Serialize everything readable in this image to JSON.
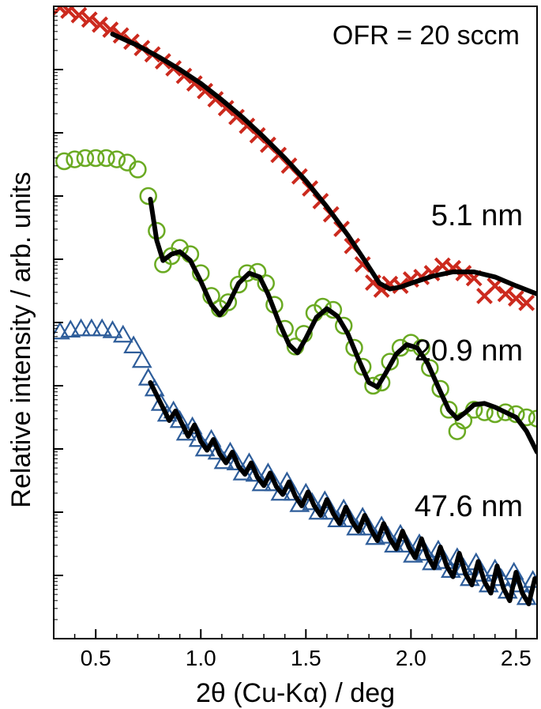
{
  "chart_data": {
    "type": "scatter",
    "title": "",
    "xlabel": "2θ (Cu-Kα) / deg",
    "ylabel": "Relative intensity / arb. units",
    "xlim": [
      0.3,
      2.6
    ],
    "xticks": [
      0.5,
      1.0,
      1.5,
      2.0,
      2.5
    ],
    "xtick_labels": [
      "0.5",
      "1.0",
      "1.5",
      "2.0",
      "2.5"
    ],
    "ylim": [
      0,
      10
    ],
    "y_scale": "log",
    "ytick_labels_shown": false,
    "grid": false,
    "legend": "none",
    "annotations": [
      {
        "text": "OFR = 20 sccm",
        "x": 2.59,
        "y": 9.6
      },
      {
        "text": "5.1 nm",
        "x": 2.59,
        "y": 6.6
      },
      {
        "text": "20.9 nm",
        "x": 2.59,
        "y": 4.8
      },
      {
        "text": "47.6 nm",
        "x": 2.59,
        "y": 2.1
      }
    ],
    "series": [
      {
        "marker": "x",
        "color": "#cc2a1e",
        "thickness_label": "5.1 nm",
        "points": [
          [
            0.33,
            9.98
          ],
          [
            0.37,
            9.93
          ],
          [
            0.42,
            9.86
          ],
          [
            0.47,
            9.79
          ],
          [
            0.52,
            9.71
          ],
          [
            0.57,
            9.63
          ],
          [
            0.62,
            9.54
          ],
          [
            0.67,
            9.44
          ],
          [
            0.72,
            9.34
          ],
          [
            0.77,
            9.24
          ],
          [
            0.82,
            9.13
          ],
          [
            0.87,
            9.02
          ],
          [
            0.92,
            8.9
          ],
          [
            0.97,
            8.78
          ],
          [
            1.02,
            8.66
          ],
          [
            1.07,
            8.53
          ],
          [
            1.12,
            8.39
          ],
          [
            1.17,
            8.25
          ],
          [
            1.22,
            8.11
          ],
          [
            1.27,
            7.96
          ],
          [
            1.32,
            7.81
          ],
          [
            1.37,
            7.65
          ],
          [
            1.42,
            7.48
          ],
          [
            1.47,
            7.31
          ],
          [
            1.52,
            7.12
          ],
          [
            1.57,
            6.92
          ],
          [
            1.62,
            6.71
          ],
          [
            1.67,
            6.48
          ],
          [
            1.72,
            6.21
          ],
          [
            1.77,
            5.92
          ],
          [
            1.82,
            5.63
          ],
          [
            1.86,
            5.52
          ],
          [
            1.9,
            5.61
          ],
          [
            1.95,
            5.58
          ],
          [
            2.0,
            5.68
          ],
          [
            2.05,
            5.72
          ],
          [
            2.1,
            5.78
          ],
          [
            2.15,
            5.9
          ],
          [
            2.2,
            5.86
          ],
          [
            2.25,
            5.78
          ],
          [
            2.3,
            5.7
          ],
          [
            2.35,
            5.42
          ],
          [
            2.4,
            5.58
          ],
          [
            2.45,
            5.45
          ],
          [
            2.5,
            5.38
          ],
          [
            2.55,
            5.31
          ]
        ],
        "fit": [
          [
            0.58,
            9.56
          ],
          [
            0.7,
            9.38
          ],
          [
            0.8,
            9.2
          ],
          [
            0.9,
            9.0
          ],
          [
            1.0,
            8.78
          ],
          [
            1.1,
            8.52
          ],
          [
            1.2,
            8.24
          ],
          [
            1.3,
            7.93
          ],
          [
            1.4,
            7.6
          ],
          [
            1.5,
            7.24
          ],
          [
            1.6,
            6.83
          ],
          [
            1.7,
            6.38
          ],
          [
            1.78,
            5.98
          ],
          [
            1.85,
            5.62
          ],
          [
            1.9,
            5.53
          ],
          [
            1.95,
            5.56
          ],
          [
            2.0,
            5.62
          ],
          [
            2.1,
            5.73
          ],
          [
            2.2,
            5.8
          ],
          [
            2.3,
            5.8
          ],
          [
            2.4,
            5.72
          ],
          [
            2.5,
            5.58
          ],
          [
            2.6,
            5.45
          ]
        ]
      },
      {
        "marker": "o",
        "color": "#6aaa22",
        "thickness_label": "20.9 nm",
        "points": [
          [
            0.35,
            7.55
          ],
          [
            0.4,
            7.58
          ],
          [
            0.45,
            7.6
          ],
          [
            0.5,
            7.6
          ],
          [
            0.55,
            7.6
          ],
          [
            0.6,
            7.58
          ],
          [
            0.65,
            7.53
          ],
          [
            0.7,
            7.42
          ],
          [
            0.75,
            7.0
          ],
          [
            0.79,
            6.45
          ],
          [
            0.82,
            5.92
          ],
          [
            0.86,
            6.05
          ],
          [
            0.9,
            6.18
          ],
          [
            0.95,
            6.08
          ],
          [
            1.0,
            5.78
          ],
          [
            1.05,
            5.42
          ],
          [
            1.09,
            5.22
          ],
          [
            1.13,
            5.32
          ],
          [
            1.18,
            5.6
          ],
          [
            1.22,
            5.78
          ],
          [
            1.27,
            5.8
          ],
          [
            1.31,
            5.62
          ],
          [
            1.35,
            5.28
          ],
          [
            1.4,
            4.9
          ],
          [
            1.45,
            4.62
          ],
          [
            1.49,
            4.82
          ],
          [
            1.54,
            5.15
          ],
          [
            1.58,
            5.25
          ],
          [
            1.63,
            5.2
          ],
          [
            1.68,
            4.95
          ],
          [
            1.73,
            4.6
          ],
          [
            1.77,
            4.3
          ],
          [
            1.82,
            4.0
          ],
          [
            1.86,
            4.05
          ],
          [
            1.9,
            4.38
          ],
          [
            1.95,
            4.6
          ],
          [
            2.0,
            4.68
          ],
          [
            2.05,
            4.6
          ],
          [
            2.09,
            4.28
          ],
          [
            2.14,
            3.95
          ],
          [
            2.18,
            3.62
          ],
          [
            2.22,
            3.28
          ],
          [
            2.25,
            3.45
          ],
          [
            2.3,
            3.62
          ],
          [
            2.35,
            3.58
          ],
          [
            2.4,
            3.55
          ],
          [
            2.45,
            3.58
          ],
          [
            2.5,
            3.55
          ],
          [
            2.55,
            3.5
          ],
          [
            2.6,
            3.48
          ]
        ],
        "fit": [
          [
            0.76,
            6.95
          ],
          [
            0.79,
            6.3
          ],
          [
            0.82,
            5.98
          ],
          [
            0.86,
            6.08
          ],
          [
            0.9,
            6.12
          ],
          [
            0.95,
            5.98
          ],
          [
            1.0,
            5.65
          ],
          [
            1.05,
            5.28
          ],
          [
            1.09,
            5.12
          ],
          [
            1.13,
            5.28
          ],
          [
            1.18,
            5.62
          ],
          [
            1.23,
            5.78
          ],
          [
            1.28,
            5.72
          ],
          [
            1.32,
            5.45
          ],
          [
            1.37,
            5.02
          ],
          [
            1.42,
            4.65
          ],
          [
            1.46,
            4.52
          ],
          [
            1.5,
            4.75
          ],
          [
            1.55,
            5.08
          ],
          [
            1.6,
            5.22
          ],
          [
            1.65,
            5.1
          ],
          [
            1.7,
            4.82
          ],
          [
            1.75,
            4.42
          ],
          [
            1.8,
            4.05
          ],
          [
            1.84,
            3.98
          ],
          [
            1.88,
            4.2
          ],
          [
            1.93,
            4.5
          ],
          [
            1.98,
            4.65
          ],
          [
            2.03,
            4.6
          ],
          [
            2.08,
            4.35
          ],
          [
            2.13,
            3.98
          ],
          [
            2.18,
            3.62
          ],
          [
            2.22,
            3.48
          ],
          [
            2.26,
            3.58
          ],
          [
            2.3,
            3.7
          ],
          [
            2.35,
            3.72
          ],
          [
            2.4,
            3.66
          ],
          [
            2.45,
            3.58
          ],
          [
            2.5,
            3.5
          ],
          [
            2.55,
            3.28
          ],
          [
            2.6,
            2.95
          ]
        ]
      },
      {
        "marker": "triangle",
        "color": "#2e5d9a",
        "thickness_label": "47.6 nm",
        "points": [
          [
            0.33,
            4.85
          ],
          [
            0.38,
            4.88
          ],
          [
            0.43,
            4.9
          ],
          [
            0.48,
            4.9
          ],
          [
            0.53,
            4.9
          ],
          [
            0.58,
            4.87
          ],
          [
            0.63,
            4.8
          ],
          [
            0.68,
            4.63
          ],
          [
            0.72,
            4.4
          ],
          [
            0.75,
            4.12
          ],
          [
            0.78,
            3.95
          ],
          [
            0.81,
            3.72
          ],
          [
            0.84,
            3.55
          ],
          [
            0.87,
            3.6
          ],
          [
            0.9,
            3.45
          ],
          [
            0.93,
            3.25
          ],
          [
            0.96,
            3.35
          ],
          [
            0.99,
            3.15
          ],
          [
            1.02,
            3.0
          ],
          [
            1.05,
            3.15
          ],
          [
            1.08,
            2.95
          ],
          [
            1.11,
            2.8
          ],
          [
            1.14,
            2.95
          ],
          [
            1.17,
            2.78
          ],
          [
            1.2,
            2.62
          ],
          [
            1.23,
            2.78
          ],
          [
            1.26,
            2.6
          ],
          [
            1.29,
            2.45
          ],
          [
            1.32,
            2.62
          ],
          [
            1.35,
            2.45
          ],
          [
            1.38,
            2.3
          ],
          [
            1.41,
            2.48
          ],
          [
            1.44,
            2.3
          ],
          [
            1.47,
            2.12
          ],
          [
            1.5,
            2.3
          ],
          [
            1.53,
            2.15
          ],
          [
            1.56,
            2.0
          ],
          [
            1.59,
            2.18
          ],
          [
            1.62,
            2.0
          ],
          [
            1.65,
            1.88
          ],
          [
            1.68,
            2.05
          ],
          [
            1.71,
            1.88
          ],
          [
            1.74,
            1.75
          ],
          [
            1.77,
            1.92
          ],
          [
            1.8,
            1.75
          ],
          [
            1.83,
            1.6
          ],
          [
            1.86,
            1.78
          ],
          [
            1.89,
            1.62
          ],
          [
            1.92,
            1.48
          ],
          [
            1.95,
            1.65
          ],
          [
            1.98,
            1.48
          ],
          [
            2.01,
            1.32
          ],
          [
            2.04,
            1.5
          ],
          [
            2.07,
            1.35
          ],
          [
            2.1,
            1.2
          ],
          [
            2.13,
            1.4
          ],
          [
            2.16,
            1.22
          ],
          [
            2.19,
            1.08
          ],
          [
            2.22,
            1.28
          ],
          [
            2.25,
            1.12
          ],
          [
            2.28,
            0.95
          ],
          [
            2.31,
            1.2
          ],
          [
            2.34,
            1.02
          ],
          [
            2.37,
            0.85
          ],
          [
            2.4,
            1.1
          ],
          [
            2.43,
            0.95
          ],
          [
            2.46,
            0.75
          ],
          [
            2.49,
            1.05
          ],
          [
            2.52,
            0.85
          ],
          [
            2.55,
            0.65
          ],
          [
            2.58,
            0.92
          ]
        ],
        "fit": [
          [
            0.76,
            4.05
          ],
          [
            0.79,
            3.85
          ],
          [
            0.82,
            3.65
          ],
          [
            0.85,
            3.45
          ],
          [
            0.88,
            3.6
          ],
          [
            0.91,
            3.4
          ],
          [
            0.94,
            3.2
          ],
          [
            0.97,
            3.38
          ],
          [
            1.0,
            3.12
          ],
          [
            1.03,
            2.98
          ],
          [
            1.06,
            3.15
          ],
          [
            1.09,
            2.92
          ],
          [
            1.12,
            2.78
          ],
          [
            1.15,
            2.95
          ],
          [
            1.18,
            2.72
          ],
          [
            1.21,
            2.6
          ],
          [
            1.24,
            2.78
          ],
          [
            1.27,
            2.55
          ],
          [
            1.3,
            2.42
          ],
          [
            1.33,
            2.62
          ],
          [
            1.36,
            2.4
          ],
          [
            1.39,
            2.28
          ],
          [
            1.42,
            2.48
          ],
          [
            1.45,
            2.25
          ],
          [
            1.48,
            2.1
          ],
          [
            1.51,
            2.32
          ],
          [
            1.54,
            2.1
          ],
          [
            1.57,
            1.95
          ],
          [
            1.6,
            2.2
          ],
          [
            1.63,
            1.98
          ],
          [
            1.66,
            1.82
          ],
          [
            1.69,
            2.08
          ],
          [
            1.72,
            1.85
          ],
          [
            1.75,
            1.7
          ],
          [
            1.78,
            1.95
          ],
          [
            1.81,
            1.72
          ],
          [
            1.84,
            1.55
          ],
          [
            1.87,
            1.82
          ],
          [
            1.9,
            1.58
          ],
          [
            1.93,
            1.42
          ],
          [
            1.96,
            1.7
          ],
          [
            1.99,
            1.45
          ],
          [
            2.02,
            1.28
          ],
          [
            2.05,
            1.58
          ],
          [
            2.08,
            1.3
          ],
          [
            2.11,
            1.12
          ],
          [
            2.14,
            1.45
          ],
          [
            2.17,
            1.15
          ],
          [
            2.2,
            0.98
          ],
          [
            2.23,
            1.35
          ],
          [
            2.26,
            1.02
          ],
          [
            2.29,
            0.85
          ],
          [
            2.32,
            1.22
          ],
          [
            2.35,
            0.9
          ],
          [
            2.38,
            0.72
          ],
          [
            2.41,
            1.15
          ],
          [
            2.44,
            0.8
          ],
          [
            2.47,
            0.6
          ],
          [
            2.5,
            1.05
          ],
          [
            2.53,
            0.72
          ],
          [
            2.56,
            0.55
          ],
          [
            2.59,
            0.95
          ]
        ]
      }
    ]
  }
}
